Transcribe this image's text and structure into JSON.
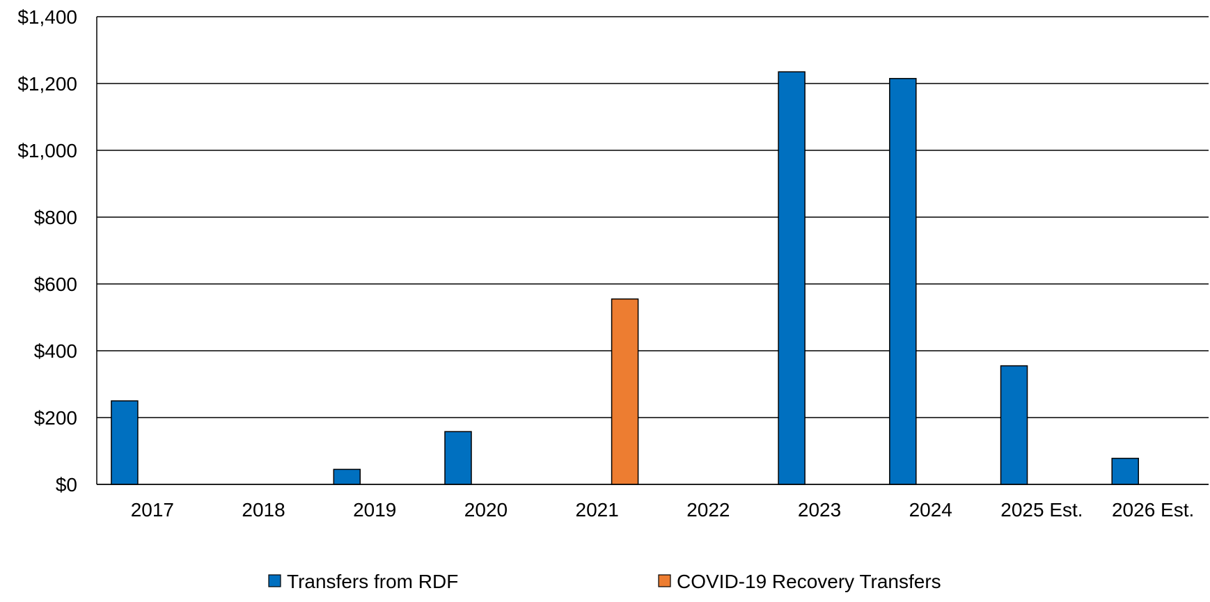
{
  "chart_data": {
    "type": "bar",
    "categories": [
      "2017",
      "2018",
      "2019",
      "2020",
      "2021",
      "2022",
      "2023",
      "2024",
      "2025 Est.",
      "2026 Est."
    ],
    "series": [
      {
        "name": "Transfers from RDF",
        "color": "#0070C0",
        "values": [
          250,
          0,
          45,
          158,
          0,
          0,
          1235,
          1215,
          355,
          78
        ]
      },
      {
        "name": "COVID-19 Recovery Transfers",
        "color": "#ED7D31",
        "values": [
          0,
          0,
          0,
          0,
          555,
          0,
          0,
          0,
          0,
          0
        ]
      }
    ],
    "ylim": [
      0,
      1400
    ],
    "yticks": [
      0,
      200,
      400,
      600,
      800,
      1000,
      1200,
      1400
    ],
    "ytick_labels": [
      "$0",
      "$200",
      "$400",
      "$600",
      "$800",
      "$1,000",
      "$1,200",
      "$1,400"
    ],
    "grid": true,
    "legend_position": "bottom"
  }
}
